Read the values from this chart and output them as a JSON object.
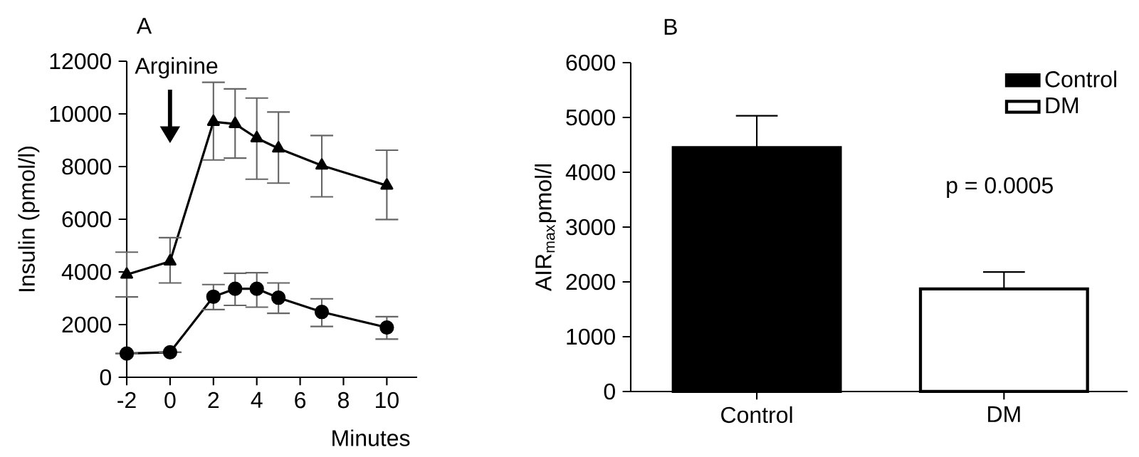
{
  "chart_data": [
    {
      "type": "line",
      "title": "A",
      "xlabel": "Minutes",
      "ylabel": "Insulin (pmol/l)",
      "x": [
        -2,
        0,
        2,
        3,
        4,
        5,
        7,
        10
      ],
      "series": [
        {
          "color": "#000000",
          "marker": "triangle",
          "values": [
            3900,
            4400,
            9700,
            9620,
            9080,
            8690,
            8040,
            7280
          ],
          "errors": [
            [
              3050,
              4750
            ],
            [
              3580,
              5300
            ],
            [
              8250,
              11200
            ],
            [
              8320,
              10950
            ],
            [
              7520,
              10600
            ],
            [
              7370,
              10070
            ],
            [
              6850,
              9180
            ],
            [
              5990,
              8620
            ]
          ]
        },
        {
          "color": "#000000",
          "marker": "circle",
          "values": [
            900,
            950,
            3060,
            3360,
            3360,
            3020,
            2480,
            1890
          ],
          "errors": [
            null,
            null,
            [
              2570,
              3520
            ],
            [
              2730,
              3950
            ],
            [
              2660,
              3970
            ],
            [
              2430,
              3580
            ],
            [
              1930,
              2980
            ],
            [
              1450,
              2300
            ]
          ]
        }
      ],
      "xlim": [
        -2,
        11.4
      ],
      "ylim": [
        0,
        12000
      ],
      "xticks": [
        -2,
        0,
        2,
        4,
        6,
        8,
        10
      ],
      "yticks": [
        0,
        2000,
        4000,
        6000,
        8000,
        10000,
        12000
      ],
      "annotations": [
        "Arginine"
      ],
      "grid": false,
      "legend": false
    },
    {
      "type": "bar",
      "title": "B",
      "ylabel": "AIR$_{max}$pmol/l",
      "categories": [
        "Control",
        "DM"
      ],
      "series": [
        {
          "name": "Control",
          "color": "#000000",
          "values": [
            4450,
            null
          ],
          "errors": [
            [
              4450,
              5030
            ],
            null
          ]
        },
        {
          "name": "DM",
          "color": "#ffffff",
          "values": [
            null,
            1870
          ],
          "errors": [
            null,
            [
              1870,
              2180
            ]
          ]
        }
      ],
      "ylim": [
        0,
        6000
      ],
      "yticks": [
        0,
        1000,
        2000,
        3000,
        4000,
        5000,
        6000
      ],
      "annotations": [
        "p = 0.0005"
      ],
      "grid": false,
      "legend": "top right"
    }
  ]
}
